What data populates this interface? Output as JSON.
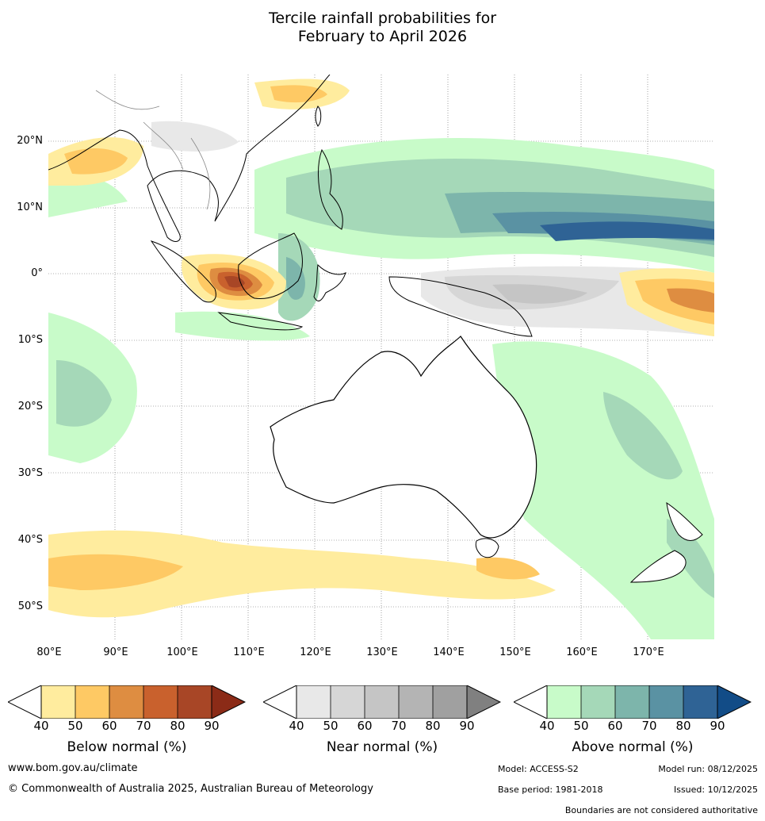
{
  "title": {
    "line1": "Tercile rainfall probabilities for",
    "line2": "February to April 2026"
  },
  "map": {
    "lat_labels": [
      "20°N",
      "10°N",
      "0°",
      "10°S",
      "20°S",
      "30°S",
      "40°S",
      "50°S"
    ],
    "lon_labels": [
      "80°E",
      "90°E",
      "100°E",
      "110°E",
      "120°E",
      "130°E",
      "140°E",
      "150°E",
      "160°E",
      "170°E"
    ],
    "colors": {
      "below": [
        "#ffec9e",
        "#fec964",
        "#de8d41",
        "#c9612d",
        "#a84626",
        "#8b2b17"
      ],
      "near": [
        "#e8e8e8",
        "#d6d6d6",
        "#c5c5c5",
        "#b4b4b4",
        "#a0a0a0",
        "#808080"
      ],
      "above": [
        "#c8fbc9",
        "#a5d8b8",
        "#7db5ab",
        "#5a92a3",
        "#2f6395",
        "#124c87"
      ]
    }
  },
  "legends": [
    {
      "label": "Below normal (%)",
      "ticks": [
        "40",
        "50",
        "60",
        "70",
        "80",
        "90"
      ]
    },
    {
      "label": "Near normal (%)",
      "ticks": [
        "40",
        "50",
        "60",
        "70",
        "80",
        "90"
      ]
    },
    {
      "label": "Above normal (%)",
      "ticks": [
        "40",
        "50",
        "60",
        "70",
        "80",
        "90"
      ]
    }
  ],
  "footer": {
    "website": "www.bom.gov.au/climate",
    "copyright": "© Commonwealth of Australia 2025, Australian Bureau of Meteorology",
    "model": "Model: ACCESS-S2",
    "model_run": "Model run: 08/12/2025",
    "base_period": "Base period: 1981-2018",
    "issued": "Issued: 10/12/2025",
    "disclaimer": "Boundaries are not considered authoritative"
  }
}
